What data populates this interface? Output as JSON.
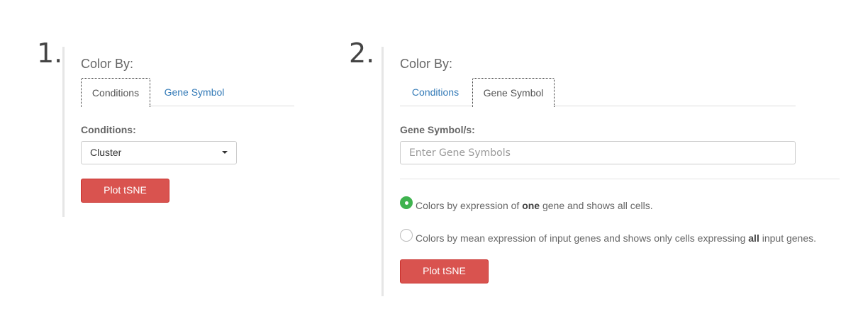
{
  "step1": {
    "number": "1.",
    "color_by_label": "Color By:",
    "tabs": [
      {
        "label": "Conditions",
        "active": true
      },
      {
        "label": "Gene Symbol",
        "active": false
      }
    ],
    "field_label": "Conditions:",
    "select_value": "Cluster",
    "plot_button": "Plot tSNE"
  },
  "step2": {
    "number": "2.",
    "color_by_label": "Color By:",
    "tabs": [
      {
        "label": "Conditions",
        "active": false
      },
      {
        "label": "Gene Symbol",
        "active": true
      }
    ],
    "field_label": "Gene Symbol/s:",
    "input_placeholder": "Enter Gene Symbols",
    "radio_options": [
      {
        "selected": true,
        "text_before": "Colors by expression of ",
        "emphasis": "one",
        "text_after": " gene and shows all cells."
      },
      {
        "selected": false,
        "text_before": "Colors by mean expression of input genes and shows only cells expressing ",
        "emphasis": "all",
        "text_after": " input genes."
      }
    ],
    "plot_button": "Plot tSNE"
  },
  "colors": {
    "accent_blue": "#337ab7",
    "button_red": "#d9534f",
    "radio_green": "#3fb34f"
  }
}
